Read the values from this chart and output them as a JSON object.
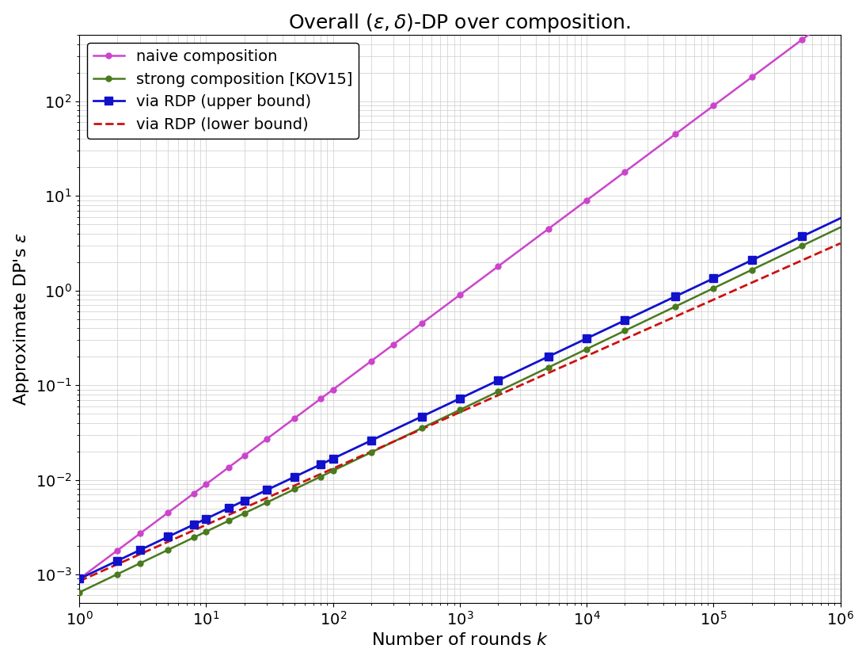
{
  "title": "Overall $(\\epsilon, \\delta)$-DP over composition.",
  "xlabel": "Number of rounds $k$",
  "ylabel": "Approximate DP's $\\epsilon$",
  "xlim": [
    1,
    1000000
  ],
  "ylim_log_min": -3.3,
  "ylim_log_max": 2.7,
  "naive_color": "#cc44cc",
  "strong_color": "#4a7a1e",
  "rdp_upper_color": "#1111cc",
  "rdp_lower_color": "#cc1111",
  "legend_labels": [
    "naive composition",
    "strong composition [KOV15]",
    "via RDP (upper bound)",
    "via RDP (lower bound)"
  ],
  "fontsize_title": 18,
  "fontsize_labels": 16,
  "fontsize_ticks": 14,
  "fontsize_legend": 14,
  "background_color": "#f8f8f8"
}
